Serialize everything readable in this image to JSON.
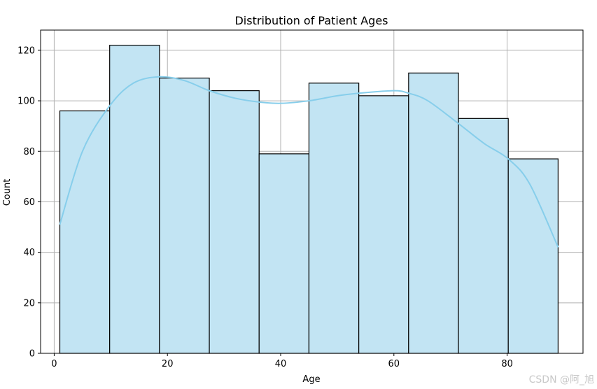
{
  "chart_data": {
    "type": "bar",
    "title": "Distribution of Patient Ages",
    "xlabel": "Age",
    "ylabel": "Count",
    "xlim": [
      -2.4,
      93.4
    ],
    "ylim": [
      0,
      128
    ],
    "xticks": [
      0,
      20,
      40,
      60,
      80
    ],
    "yticks": [
      0,
      20,
      40,
      60,
      80,
      100,
      120
    ],
    "grid": true,
    "colors": {
      "bar_fill": "#c2e4f3",
      "bar_edge": "#000000",
      "kde": "#87ceeb",
      "grid": "#b0b0b0"
    },
    "bins": [
      {
        "x0": 1.0,
        "x1": 9.8,
        "count": 96
      },
      {
        "x0": 9.8,
        "x1": 18.6,
        "count": 122
      },
      {
        "x0": 18.6,
        "x1": 27.4,
        "count": 109
      },
      {
        "x0": 27.4,
        "x1": 36.2,
        "count": 104
      },
      {
        "x0": 36.2,
        "x1": 45.0,
        "count": 79
      },
      {
        "x0": 45.0,
        "x1": 53.8,
        "count": 107
      },
      {
        "x0": 53.8,
        "x1": 62.6,
        "count": 102
      },
      {
        "x0": 62.6,
        "x1": 71.4,
        "count": 111
      },
      {
        "x0": 71.4,
        "x1": 80.2,
        "count": 93
      },
      {
        "x0": 80.2,
        "x1": 89.0,
        "count": 77
      }
    ],
    "kde": {
      "x": [
        1,
        5,
        9.8,
        14,
        18.6,
        23,
        27.4,
        32,
        36.2,
        40,
        45,
        50,
        53.8,
        60,
        62.6,
        66,
        71.4,
        76,
        80.2,
        84,
        89
      ],
      "y": [
        51,
        80,
        98,
        107,
        109.5,
        108,
        104,
        101,
        99.5,
        99,
        100,
        102,
        103,
        104,
        103,
        100,
        91,
        83,
        77,
        67,
        42
      ]
    }
  },
  "watermark": "CSDN @阿_旭"
}
